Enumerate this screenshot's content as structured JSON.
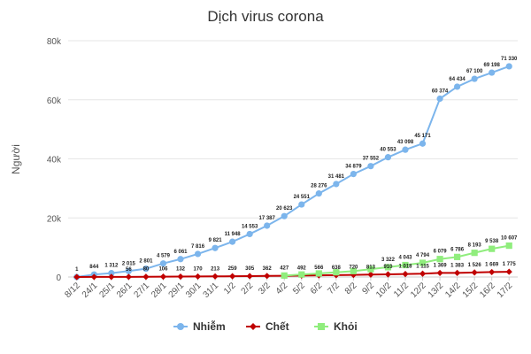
{
  "chart_data": {
    "type": "line",
    "title": "Dịch virus corona",
    "xlabel": "",
    "ylabel": "Người",
    "ylim": [
      0,
      80000
    ],
    "y_ticks": [
      "0",
      "20k",
      "40k",
      "60k",
      "80k"
    ],
    "grid": "horizontal",
    "legend_position": "bottom",
    "categories": [
      "8/12",
      "24/1",
      "25/1",
      "26/1",
      "27/1",
      "28/1",
      "29/1",
      "30/1",
      "31/1",
      "1/2",
      "2/2",
      "3/2",
      "4/2",
      "5/2",
      "6/2",
      "7/2",
      "8/2",
      "9/2",
      "10/2",
      "11/2",
      "12/2",
      "13/2",
      "14/2",
      "15/2",
      "16/2",
      "17/2"
    ],
    "series": [
      {
        "name": "Nhiễm",
        "color": "#7cb5ec",
        "marker": "circle",
        "values": [
          1,
          844,
          1312,
          2015,
          2801,
          4579,
          6061,
          7816,
          9821,
          11948,
          14553,
          17387,
          20623,
          24551,
          28276,
          31481,
          34879,
          37552,
          40553,
          43098,
          45171,
          60374,
          64434,
          67100,
          69198,
          71330
        ],
        "labels": [
          "1",
          "844",
          "1 312",
          "2 015",
          "2 801",
          "4 579",
          "6 061",
          "7 816",
          "9 821",
          "11 948",
          "14 553",
          "17 387",
          "20 623",
          "24 551",
          "28 276",
          "31 481",
          "34 879",
          "37 552",
          "40 553",
          "43 098",
          "45 171",
          "60 374",
          "64 434",
          "67 100",
          "69 198",
          "71 330"
        ]
      },
      {
        "name": "Chết",
        "color": "#c00000",
        "marker": "diamond",
        "values": [
          0,
          25,
          41,
          56,
          80,
          106,
          132,
          170,
          213,
          259,
          305,
          362,
          427,
          492,
          566,
          638,
          720,
          813,
          910,
          1018,
          1115,
          1369,
          1383,
          1526,
          1669,
          1775
        ],
        "labels": [
          null,
          null,
          null,
          "56",
          "80",
          "106",
          "132",
          "170",
          "213",
          "259",
          "305",
          "362",
          "427",
          "492",
          "566",
          "638",
          "720",
          "813",
          "910",
          "1 018",
          "1 115",
          "1 369",
          "1 383",
          "1 526",
          "1 669",
          "1 775"
        ]
      },
      {
        "name": "Khỏi",
        "color": "#90ed7d",
        "marker": "square",
        "values": [
          null,
          null,
          null,
          null,
          null,
          null,
          null,
          null,
          null,
          null,
          null,
          null,
          500,
          850,
          1200,
          1600,
          2000,
          2650,
          3322,
          4043,
          4794,
          6079,
          6786,
          8193,
          9538,
          10607
        ],
        "labels": [
          null,
          null,
          null,
          null,
          null,
          null,
          null,
          null,
          null,
          null,
          null,
          null,
          null,
          null,
          null,
          null,
          null,
          null,
          "3 322",
          "4 043",
          "4 794",
          "6 079",
          "6 786",
          "8 193",
          "9 538",
          "10 607"
        ]
      }
    ]
  }
}
